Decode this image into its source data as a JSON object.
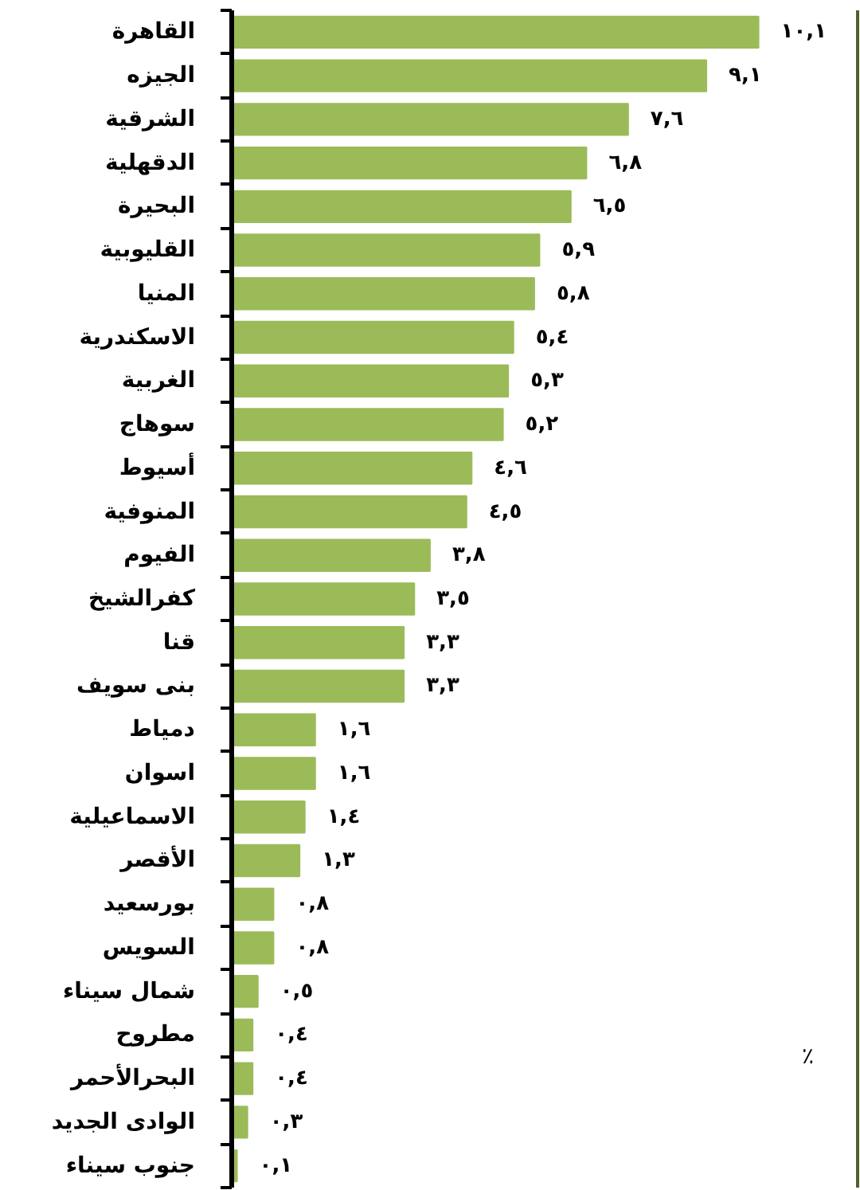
{
  "chart_data": {
    "type": "bar",
    "orientation": "horizontal",
    "categories": [
      "القاهرة",
      "الجيزه",
      "الشرقية",
      "الدقهلية",
      "البحيرة",
      "القليوبية",
      "المنيا",
      "الاسكندرية",
      "الغربية",
      "سوهاج",
      "أسيوط",
      "المنوفية",
      "الفيوم",
      "كفرالشيخ",
      "قنا",
      "بنى سويف",
      "دمياط",
      "اسوان",
      "الاسماعيلية",
      "الأقصر",
      "بورسعيد",
      "السويس",
      "شمال سيناء",
      "مطروح",
      "البحرالأحمر",
      "الوادى الجديد",
      "جنوب سيناء"
    ],
    "values": [
      10.1,
      9.1,
      7.6,
      6.8,
      6.5,
      5.9,
      5.8,
      5.4,
      5.3,
      5.2,
      4.6,
      4.5,
      3.8,
      3.5,
      3.3,
      3.3,
      1.6,
      1.6,
      1.4,
      1.3,
      0.8,
      0.8,
      0.5,
      0.4,
      0.4,
      0.3,
      0.1
    ],
    "value_labels": [
      "١٠,١",
      "٩,١",
      "٧,٦",
      "٦,٨",
      "٦,٥",
      "٥,٩",
      "٥,٨",
      "٥,٤",
      "٥,٣",
      "٥,٢",
      "٤,٦",
      "٤,٥",
      "٣,٨",
      "٣,٥",
      "٣,٣",
      "٣,٣",
      "١,٦",
      "١,٦",
      "١,٤",
      "١,٣",
      "٠,٨",
      "٠,٨",
      "٠,٥",
      "٠,٤",
      "٠,٤",
      "٠,٣",
      "٠,١"
    ],
    "color": "#9bbb59",
    "xlim": [
      0,
      12
    ],
    "tick_labels": "y",
    "grid": false,
    "annotations": [
      "٪"
    ]
  }
}
